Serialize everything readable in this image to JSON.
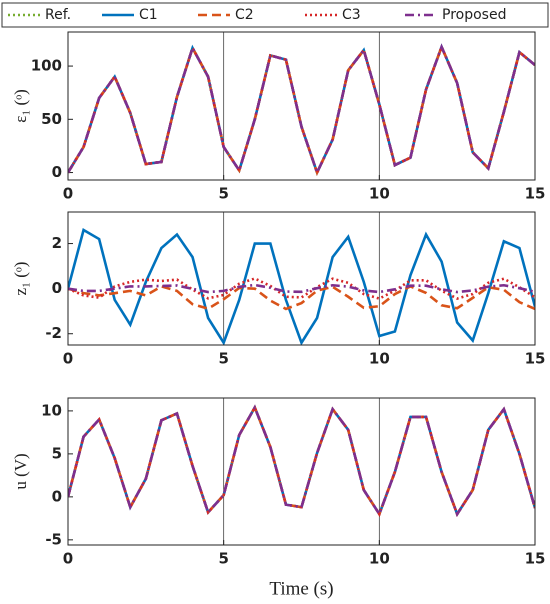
{
  "chart_data": [
    {
      "type": "line",
      "ylabel": "ε₁ (ᵒ)",
      "legend": "top",
      "grid": "x",
      "x": [
        0,
        0.5,
        1,
        1.5,
        2,
        2.5,
        3,
        3.5,
        4,
        4.5,
        5,
        5.5,
        6,
        6.5,
        7,
        7.5,
        8,
        8.5,
        9,
        9.5,
        10,
        10.5,
        11,
        11.5,
        12,
        12.5,
        13,
        13.5,
        14,
        14.5,
        15
      ],
      "xlim": [
        0,
        15
      ],
      "xticks": [
        0,
        5,
        10,
        15
      ],
      "ylim": [
        -7,
        132
      ],
      "yticks": [
        0,
        50,
        100
      ],
      "series": [
        {
          "name": "Ref.",
          "color": "#77ac30",
          "style": "dotted",
          "values": [
            0,
            24,
            70,
            90,
            56,
            8,
            10,
            71,
            117,
            90,
            24,
            2,
            50,
            110,
            106,
            43,
            0,
            31,
            96,
            115,
            64,
            7,
            14,
            78,
            118,
            84,
            19,
            4,
            57,
            113,
            101
          ]
        },
        {
          "name": "C1",
          "color": "#0072bd",
          "style": "solid",
          "values": [
            0,
            24,
            70,
            90,
            56,
            8,
            10,
            71,
            117,
            90,
            24,
            2,
            50,
            110,
            106,
            43,
            0,
            31,
            96,
            115,
            64,
            7,
            14,
            78,
            118,
            84,
            19,
            4,
            57,
            113,
            101
          ]
        },
        {
          "name": "C2",
          "color": "#d95319",
          "style": "dashed",
          "values": [
            0,
            24,
            70,
            90,
            56,
            8,
            10,
            71,
            117,
            90,
            24,
            2,
            50,
            110,
            106,
            43,
            0,
            31,
            96,
            115,
            64,
            7,
            14,
            78,
            118,
            84,
            19,
            4,
            57,
            113,
            101
          ]
        },
        {
          "name": "C3",
          "color": "#d62728",
          "style": "dotted",
          "values": [
            0,
            24,
            70,
            90,
            56,
            8,
            10,
            71,
            117,
            90,
            24,
            2,
            50,
            110,
            106,
            43,
            0,
            31,
            96,
            115,
            64,
            7,
            14,
            78,
            118,
            84,
            19,
            4,
            57,
            113,
            101
          ]
        },
        {
          "name": "Proposed",
          "color": "#7e2f8e",
          "style": "dashdot",
          "values": [
            0,
            24,
            70,
            90,
            56,
            8,
            10,
            71,
            117,
            90,
            24,
            2,
            50,
            110,
            106,
            43,
            0,
            31,
            96,
            115,
            64,
            7,
            14,
            78,
            118,
            84,
            19,
            4,
            57,
            113,
            101
          ]
        }
      ]
    },
    {
      "type": "line",
      "ylabel": "z₁ (ᵒ)",
      "grid": "x",
      "x": [
        0,
        0.5,
        1,
        1.5,
        2,
        2.5,
        3,
        3.5,
        4,
        4.5,
        5,
        5.5,
        6,
        6.5,
        7,
        7.5,
        8,
        8.5,
        9,
        9.5,
        10,
        10.5,
        11,
        11.5,
        12,
        12.5,
        13,
        13.5,
        14,
        14.5,
        15
      ],
      "xlim": [
        0,
        15
      ],
      "xticks": [
        0,
        5,
        10,
        15
      ],
      "ylim": [
        -2.5,
        3.4
      ],
      "yticks": [
        -2,
        0,
        2
      ],
      "series": [
        {
          "name": "C1",
          "color": "#0072bd",
          "style": "solid",
          "values": [
            0,
            2.6,
            2.2,
            -0.5,
            -1.6,
            0.3,
            1.8,
            2.4,
            1.4,
            -1.3,
            -2.4,
            -0.5,
            2.0,
            2.0,
            -0.5,
            -2.4,
            -1.3,
            1.4,
            2.3,
            0.3,
            -2.1,
            -1.9,
            0.6,
            2.4,
            1.2,
            -1.5,
            -2.3,
            -0.2,
            2.1,
            1.8,
            -0.8
          ]
        },
        {
          "name": "C2",
          "color": "#d95319",
          "style": "dashed",
          "values": [
            0,
            -0.2,
            -0.3,
            -0.2,
            -0.1,
            -0.3,
            0.1,
            -0.1,
            -0.69,
            -0.89,
            -0.47,
            0.03,
            0,
            -0.53,
            -0.9,
            -0.64,
            -0.09,
            0.08,
            -0.36,
            -0.85,
            -0.78,
            -0.24,
            0.1,
            -0.19,
            -0.74,
            -0.87,
            -0.41,
            0.06,
            -0.05,
            -0.6,
            -0.9
          ]
        },
        {
          "name": "C3",
          "color": "#d62728",
          "style": "dotted",
          "values": [
            0,
            -0.3,
            -0.4,
            0.1,
            0.3,
            0.4,
            0.34,
            0.4,
            -0.04,
            -0.43,
            -0.28,
            0.22,
            0.45,
            0.12,
            -0.36,
            -0.39,
            0.07,
            0.44,
            0.26,
            -0.24,
            -0.44,
            -0.09,
            0.37,
            0.37,
            -0.09,
            -0.44,
            -0.24,
            0.26,
            0.44,
            0.06,
            -0.39
          ]
        },
        {
          "name": "Proposed",
          "color": "#7e2f8e",
          "style": "dashdot",
          "values": [
            0,
            -0.1,
            -0.1,
            0,
            0.1,
            0.1,
            0.12,
            0.14,
            -0.01,
            -0.15,
            -0.1,
            0.08,
            0.16,
            0.04,
            -0.13,
            -0.14,
            0.02,
            0.15,
            0.09,
            -0.08,
            -0.15,
            -0.03,
            0.13,
            0.13,
            -0.03,
            -0.15,
            -0.08,
            0.09,
            0.15,
            0.02,
            -0.14
          ]
        }
      ]
    },
    {
      "type": "line",
      "ylabel": "u (V)",
      "xlabel": "Time (s)",
      "grid": "x",
      "x": [
        0,
        0.5,
        1,
        1.5,
        2,
        2.5,
        3,
        3.5,
        4,
        4.5,
        5,
        5.5,
        6,
        6.5,
        7,
        7.5,
        8,
        8.5,
        9,
        9.5,
        10,
        10.5,
        11,
        11.5,
        12,
        12.5,
        13,
        13.5,
        14,
        14.5,
        15
      ],
      "xlim": [
        0,
        15
      ],
      "xticks": [
        0,
        5,
        10,
        15
      ],
      "ylim": [
        -5.6,
        11.5
      ],
      "yticks": [
        -5,
        0,
        5,
        10
      ],
      "series": [
        {
          "name": "C1",
          "color": "#0072bd",
          "style": "solid",
          "values": [
            0,
            7,
            9,
            4.5,
            -1.2,
            2.1,
            8.9,
            9.7,
            3.6,
            -1.8,
            0.2,
            7.2,
            10.4,
            5.8,
            -0.9,
            -1.2,
            5.1,
            10.2,
            7.8,
            0.8,
            -2.0,
            2.9,
            9.3,
            9.3,
            2.9,
            -2.0,
            0.8,
            7.8,
            10.2,
            5.0,
            -1.3
          ]
        },
        {
          "name": "C2",
          "color": "#d95319",
          "style": "dashed",
          "values": [
            0,
            7,
            9,
            4.5,
            -1.2,
            2.1,
            8.9,
            9.7,
            3.6,
            -1.8,
            0.2,
            7.2,
            10.4,
            5.8,
            -0.9,
            -1.2,
            5.1,
            10.2,
            7.8,
            0.8,
            -2.0,
            2.9,
            9.3,
            9.3,
            2.9,
            -2.0,
            0.8,
            7.8,
            10.2,
            5.0,
            -1.3
          ]
        },
        {
          "name": "C3",
          "color": "#d62728",
          "style": "dotted",
          "values": [
            0,
            7,
            9,
            4.5,
            -1.2,
            2.1,
            8.9,
            9.7,
            3.6,
            -1.8,
            0.2,
            7.2,
            10.4,
            5.8,
            -0.9,
            -1.2,
            5.1,
            10.2,
            7.8,
            0.8,
            -2.0,
            2.9,
            9.3,
            9.3,
            2.9,
            -2.0,
            0.8,
            7.8,
            10.2,
            5.0,
            -1.3
          ]
        },
        {
          "name": "Proposed",
          "color": "#7e2f8e",
          "style": "dashdot",
          "values": [
            0,
            7,
            9,
            4.5,
            -1.2,
            2.1,
            8.9,
            9.7,
            3.6,
            -1.8,
            0.2,
            7.2,
            10.4,
            5.8,
            -0.9,
            -1.2,
            5.1,
            10.2,
            7.8,
            0.8,
            -2.0,
            2.9,
            9.3,
            9.3,
            2.9,
            -2.0,
            0.8,
            7.8,
            10.2,
            5.0,
            -1.3
          ]
        }
      ]
    }
  ]
}
